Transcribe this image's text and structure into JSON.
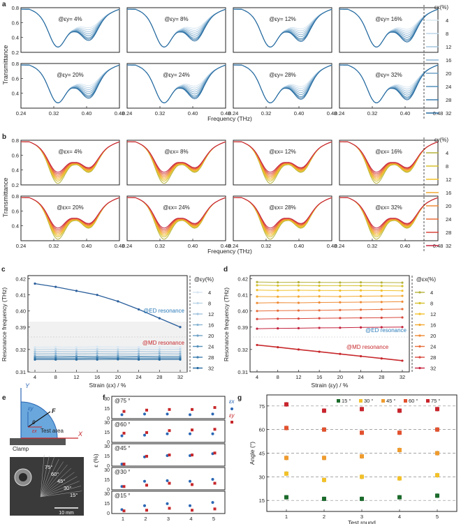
{
  "figure": {
    "panel_letters": [
      "a",
      "b",
      "c",
      "d",
      "e",
      "f",
      "g"
    ]
  },
  "chart_data": [
    {
      "panel": "a",
      "type": "line",
      "ylabel": "Transmittance",
      "xlabel": "Frequency (THz)",
      "xlim": [
        0.24,
        0.48
      ],
      "xticks": [
        "0.24",
        "0.32",
        "0.40",
        "0.48"
      ],
      "ylim_top": [
        0.2,
        0.8
      ],
      "yticks_top": [
        "0.2",
        "0.4",
        "0.6",
        "0.8"
      ],
      "ylim_bottom": [
        0.2,
        0.8
      ],
      "yticks_bottom": [
        "0.4",
        "0.6",
        "0.8"
      ],
      "subplots": [
        "@εy= 4%",
        "@εy= 8%",
        "@εy= 12%",
        "@εy= 16%",
        "@εy= 20%",
        "@εy= 24%",
        "@εy= 28%",
        "@εy= 32%"
      ],
      "legend_title": "εx(%)",
      "series": [
        "4",
        "8",
        "12",
        "16",
        "20",
        "24",
        "28",
        "32"
      ],
      "dip1_freq": [
        0.33,
        0.33,
        0.33,
        0.33,
        0.33,
        0.33,
        0.33,
        0.33
      ],
      "dip1_depth": [
        0.27,
        0.27,
        0.27,
        0.27,
        0.27,
        0.27,
        0.27,
        0.27
      ],
      "dip2_depth": [
        0.52,
        0.49,
        0.46,
        0.43,
        0.4,
        0.37,
        0.35,
        0.33
      ],
      "colors": [
        "#d8e7f2",
        "#bed6e8",
        "#a4c5de",
        "#8ab4d3",
        "#6fa2c6",
        "#5590ba",
        "#3d7eae",
        "#276a9f"
      ]
    },
    {
      "panel": "b",
      "type": "line",
      "ylabel": "Transmittance",
      "xlabel": "Frequency (THz)",
      "xlim": [
        0.24,
        0.48
      ],
      "xticks": [
        "0.24",
        "0.32",
        "0.40",
        "0.48"
      ],
      "ylim_top": [
        0.2,
        0.8
      ],
      "yticks_top": [
        "0.2",
        "0.4",
        "0.6",
        "0.8"
      ],
      "ylim_bottom": [
        0.2,
        0.8
      ],
      "yticks_bottom": [
        "0.4",
        "0.6",
        "0.8"
      ],
      "subplots": [
        "@εx= 4%",
        "@εx= 8%",
        "@εx= 12%",
        "@εx= 16%",
        "@εx= 20%",
        "@εx= 24%",
        "@εx= 28%",
        "@εx= 32%"
      ],
      "legend_title": "εy(%)",
      "series": [
        "4",
        "8",
        "12",
        "16",
        "20",
        "24",
        "28",
        "32"
      ],
      "dip1_depth": [
        0.22,
        0.25,
        0.27,
        0.29,
        0.31,
        0.33,
        0.35,
        0.37
      ],
      "dip2_depth": [
        0.34,
        0.35,
        0.36,
        0.37,
        0.38,
        0.39,
        0.4,
        0.41
      ],
      "colors": [
        "#b5b23a",
        "#d5c02c",
        "#f2c12a",
        "#f3a830",
        "#ef8c36",
        "#e86e3a",
        "#d9473d",
        "#c4243f"
      ]
    },
    {
      "panel": "c",
      "type": "line",
      "xlabel": "Strain (εx) / %",
      "ylabel": "Resonance frequency (THz)",
      "x": [
        4,
        8,
        12,
        16,
        20,
        24,
        28,
        32
      ],
      "xticks": [
        "4",
        "8",
        "12",
        "16",
        "20",
        "24",
        "28",
        "32"
      ],
      "yticks_top": [
        "0.39",
        "0.40",
        "0.41",
        "0.42"
      ],
      "yticks_bottom": [
        "0.31",
        "0.32"
      ],
      "ylim_top": [
        0.386,
        0.422
      ],
      "ylim_bottom": [
        0.31,
        0.324
      ],
      "legend_title": "@εy(%)",
      "legend": [
        "4",
        "8",
        "12",
        "16",
        "20",
        "24",
        "28",
        "32"
      ],
      "annotation_top": "@ED resonance",
      "annotation_bottom": "@MD resonance",
      "ed_values": [
        0.417,
        0.415,
        0.4125,
        0.41,
        0.406,
        0.401,
        0.3955,
        0.39
      ],
      "md_series": [
        [
          0.321,
          0.3211,
          0.321,
          0.3212,
          0.3211,
          0.321,
          0.3211,
          0.321
        ],
        [
          0.32,
          0.3201,
          0.32,
          0.3201,
          0.32,
          0.3201,
          0.32,
          0.3201
        ],
        [
          0.319,
          0.3191,
          0.319,
          0.3191,
          0.319,
          0.3191,
          0.319,
          0.319
        ],
        [
          0.318,
          0.3181,
          0.318,
          0.3181,
          0.318,
          0.318,
          0.3181,
          0.318
        ],
        [
          0.317,
          0.3171,
          0.317,
          0.317,
          0.3171,
          0.317,
          0.317,
          0.317
        ],
        [
          0.3165,
          0.3165,
          0.3166,
          0.3165,
          0.3165,
          0.3166,
          0.3165,
          0.3165
        ],
        [
          0.316,
          0.316,
          0.316,
          0.3161,
          0.316,
          0.316,
          0.316,
          0.316
        ],
        [
          0.3155,
          0.3155,
          0.3155,
          0.3155,
          0.3156,
          0.3155,
          0.3155,
          0.3155
        ]
      ],
      "colors": [
        "#d8e7f2",
        "#bed6e8",
        "#a4c5de",
        "#8ab4d3",
        "#6fa2c6",
        "#5590ba",
        "#3d7eae",
        "#276a9f"
      ]
    },
    {
      "panel": "d",
      "type": "line",
      "xlabel": "Strain (εy) / %",
      "ylabel": "Resonance frequency (THz)",
      "x": [
        4,
        8,
        12,
        16,
        20,
        24,
        28,
        32
      ],
      "xticks": [
        "4",
        "8",
        "12",
        "16",
        "20",
        "24",
        "28",
        "32"
      ],
      "yticks_top": [
        "0.39",
        "0.40",
        "0.41",
        "0.42"
      ],
      "yticks_bottom": [
        "0.31",
        "0.32"
      ],
      "ylim_top": [
        0.386,
        0.422
      ],
      "ylim_bottom": [
        0.31,
        0.324
      ],
      "legend_title": "@εx(%)",
      "legend": [
        "4",
        "8",
        "12",
        "16",
        "20",
        "24",
        "28",
        "32"
      ],
      "annotation_top": "@ED resonance",
      "annotation_bottom": "@MD resonance",
      "ed_series": [
        [
          0.418,
          0.4178,
          0.4179,
          0.4178,
          0.4177,
          0.4178,
          0.4177,
          0.4176
        ],
        [
          0.416,
          0.4158,
          0.4159,
          0.4157,
          0.4158,
          0.4157,
          0.4156,
          0.4155
        ],
        [
          0.413,
          0.4128,
          0.4129,
          0.4128,
          0.4127,
          0.4128,
          0.4127,
          0.4126
        ],
        [
          0.409,
          0.4089,
          0.409,
          0.4091,
          0.409,
          0.4092,
          0.4093,
          0.4094
        ],
        [
          0.405,
          0.4052,
          0.4051,
          0.4053,
          0.4054,
          0.4055,
          0.4056,
          0.4058
        ],
        [
          0.4,
          0.4002,
          0.4003,
          0.4004,
          0.4006,
          0.4008,
          0.401,
          0.4012
        ],
        [
          0.395,
          0.3952,
          0.3953,
          0.3955,
          0.3956,
          0.3957,
          0.3958,
          0.396
        ],
        [
          0.389,
          0.3892,
          0.3893,
          0.3895,
          0.3896,
          0.3898,
          0.3899,
          0.39
        ]
      ],
      "md_values": [
        0.322,
        0.321,
        0.32,
        0.319,
        0.318,
        0.317,
        0.316,
        0.315
      ],
      "colors": [
        "#b5b23a",
        "#d5c02c",
        "#f2c12a",
        "#f3a830",
        "#ef8c36",
        "#e86e3a",
        "#d9473d",
        "#c4243f"
      ]
    },
    {
      "panel": "f",
      "type": "scatter",
      "xlabel": "Test round",
      "ylabel": "ε (%)",
      "x": [
        1,
        2,
        3,
        4,
        5
      ],
      "xticks": [
        "1",
        "2",
        "3",
        "4",
        "5"
      ],
      "yticks": [
        "0",
        "15",
        "30"
      ],
      "ylim": [
        0,
        30
      ],
      "legend": [
        "εx",
        "εy"
      ],
      "subplots": [
        {
          "label": "@75 °",
          "ex": [
            5,
            6,
            6,
            5,
            6
          ],
          "ey": [
            10,
            12,
            13,
            13,
            16
          ]
        },
        {
          "label": "@60 °",
          "ex": [
            9,
            10,
            12,
            12,
            12
          ],
          "ey": [
            13,
            14,
            17,
            18,
            19
          ]
        },
        {
          "label": "@45 °",
          "ex": [
            2,
            13,
            15,
            15,
            18
          ],
          "ey": [
            2,
            14,
            16,
            16,
            19
          ]
        },
        {
          "label": "@30 °",
          "ex": [
            4,
            12,
            13,
            12,
            15
          ],
          "ey": [
            4,
            6,
            9,
            7,
            9
          ]
        },
        {
          "label": "@15 °",
          "ex": [
            5,
            11,
            14,
            11,
            16
          ],
          "ey": [
            3,
            4,
            7,
            4,
            6
          ]
        }
      ],
      "colors": {
        "ex": "#2a66b4",
        "ey": "#c7282c"
      }
    },
    {
      "panel": "g",
      "type": "scatter",
      "xlabel": "Test round",
      "ylabel": "Angle (°)",
      "x": [
        1,
        2,
        3,
        4,
        5
      ],
      "xticks": [
        "1",
        "2",
        "3",
        "4",
        "5"
      ],
      "ylim": [
        8,
        82
      ],
      "yticks": [
        "15",
        "30",
        "45",
        "60",
        "75"
      ],
      "legend": [
        "15 °",
        "30 °",
        "45 °",
        "60 °",
        "75 °"
      ],
      "reference_lines": [
        15,
        30,
        45,
        60,
        75
      ],
      "series": [
        {
          "name": "15 °",
          "values": [
            17,
            16,
            16,
            17,
            18
          ]
        },
        {
          "name": "30 °",
          "values": [
            32,
            28,
            30,
            29,
            31
          ]
        },
        {
          "name": "45 °",
          "values": [
            42,
            42,
            43,
            47,
            45
          ]
        },
        {
          "name": "60 °",
          "values": [
            61,
            60,
            58,
            58,
            60
          ]
        },
        {
          "name": "75 °",
          "values": [
            76,
            72,
            73,
            72,
            73
          ]
        }
      ],
      "colors": [
        "#1c6b2c",
        "#f2c12a",
        "#ef9b2e",
        "#e2522f",
        "#c9252d"
      ]
    }
  ],
  "photo_e": {
    "y_label": "Y",
    "x_label": "X",
    "ey_label": "εy",
    "ex_label": "εx",
    "force_label": "F",
    "theta_label": "θ",
    "area_label": "Test area",
    "clamp_label": "Clamp",
    "angle_marks": [
      "75°",
      "60°",
      "45°",
      "30°",
      "15°"
    ],
    "scale_bar": "10 mm"
  }
}
